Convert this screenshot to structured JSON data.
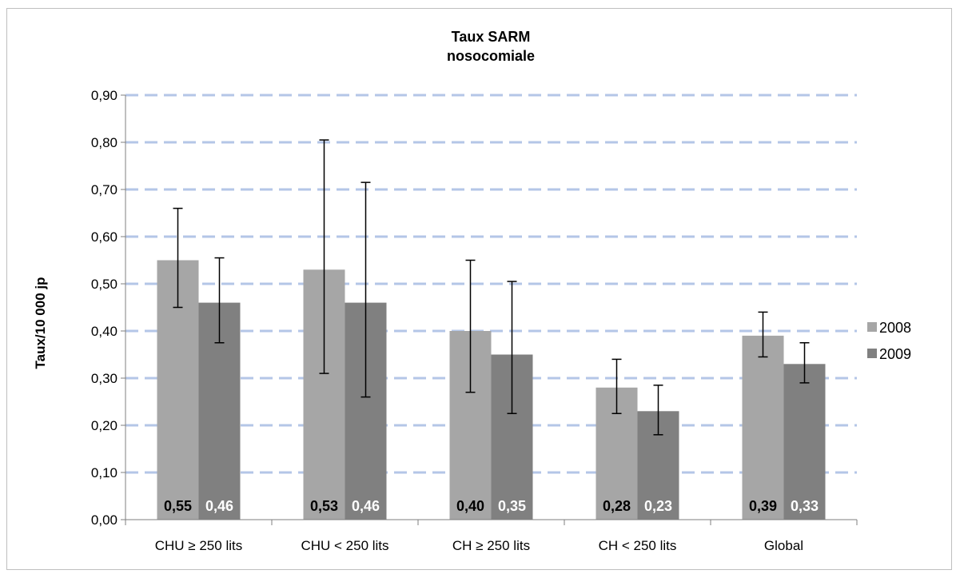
{
  "chart_data": {
    "type": "bar",
    "title": "Taux SARM",
    "subtitle": "nosocomiale",
    "ylabel": "Taux/10 000 jp",
    "xlabel": "",
    "ylim": [
      0,
      0.9
    ],
    "yticks": [
      "0,00",
      "0,10",
      "0,20",
      "0,30",
      "0,40",
      "0,50",
      "0,60",
      "0,70",
      "0,80",
      "0,90"
    ],
    "grid": true,
    "legend_position": "right",
    "categories": [
      "CHU ≥ 250 lits",
      "CHU < 250 lits",
      "CH ≥ 250 lits",
      "CH < 250 lits",
      "Global"
    ],
    "series": [
      {
        "name": "2008",
        "color": "#a6a6a6",
        "label_color": "#000000",
        "values": [
          0.55,
          0.53,
          0.4,
          0.28,
          0.39
        ],
        "labels": [
          "0,55",
          "0,53",
          "0,40",
          "0,28",
          "0,39"
        ],
        "error_low": [
          0.45,
          0.31,
          0.27,
          0.225,
          0.345
        ],
        "error_high": [
          0.66,
          0.805,
          0.55,
          0.34,
          0.44
        ]
      },
      {
        "name": "2009",
        "color": "#808080",
        "label_color": "#ffffff",
        "values": [
          0.46,
          0.46,
          0.35,
          0.23,
          0.33
        ],
        "labels": [
          "0,46",
          "0,46",
          "0,35",
          "0,23",
          "0,33"
        ],
        "error_low": [
          0.375,
          0.26,
          0.225,
          0.18,
          0.29
        ],
        "error_high": [
          0.555,
          0.715,
          0.505,
          0.285,
          0.375
        ]
      }
    ],
    "gridline_color": "#b4c6e7"
  }
}
